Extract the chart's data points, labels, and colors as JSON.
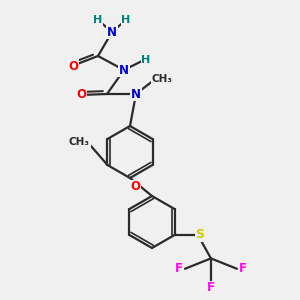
{
  "background_color": "#f0f0f0",
  "bond_color": "#2a2a2a",
  "atom_colors": {
    "O": "#ff0000",
    "N": "#0000cc",
    "H": "#008080",
    "S": "#cccc00",
    "F": "#ff00ff",
    "C": "#2a2a2a"
  },
  "figsize": [
    3.0,
    3.0
  ],
  "dpi": 100
}
